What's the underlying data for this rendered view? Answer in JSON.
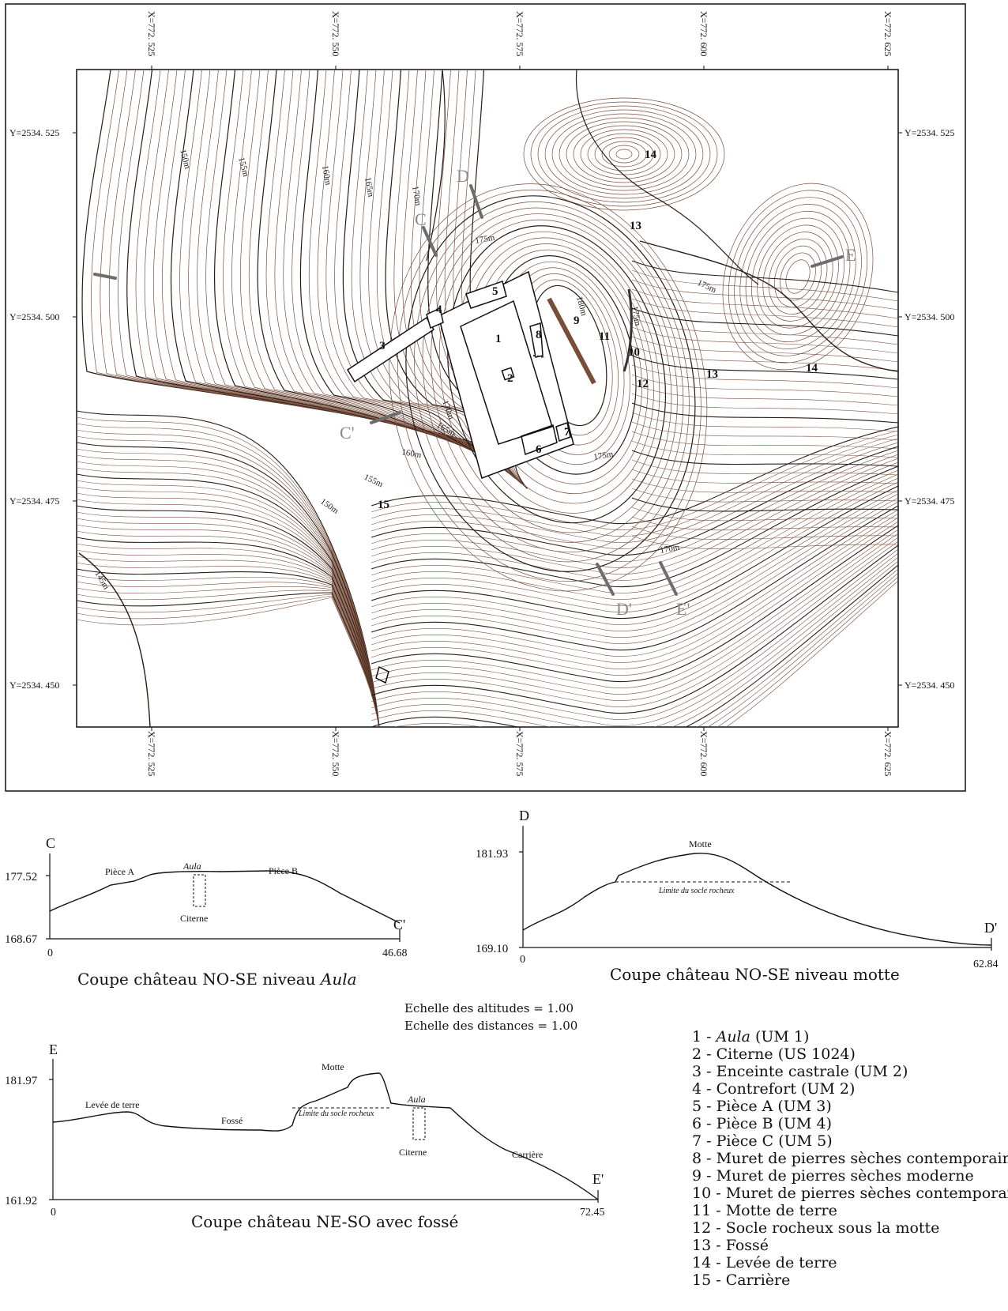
{
  "map": {
    "x_labels": [
      "X=772. 525",
      "X=772. 550",
      "X=772. 575",
      "X=772. 600",
      "X=772. 625"
    ],
    "y_labels": [
      "Y=2534. 525",
      "Y=2534. 500",
      "Y=2534. 475",
      "Y=2534. 450"
    ],
    "contour_labels": [
      "150m",
      "155m",
      "160m",
      "165m",
      "170m",
      "175m",
      "180m",
      "175m",
      "175m",
      "170m",
      "165m",
      "160m",
      "155m",
      "150m",
      "145m",
      "170m",
      "175m"
    ],
    "section_markers": [
      "C",
      "D",
      "E",
      "C'",
      "D'",
      "E'"
    ],
    "feature_numbers": [
      "1",
      "2",
      "3",
      "4",
      "5",
      "6",
      "7",
      "8",
      "9",
      "10",
      "11",
      "12",
      "13",
      "13",
      "14",
      "14",
      "15"
    ],
    "colors": {
      "contour": "#7a4d3a",
      "contour_major": "#2a1d18",
      "section_line": "#6d6d6d",
      "marker_text": "#8a8a8a"
    }
  },
  "profiles": {
    "c": {
      "start": "C",
      "end": "C'",
      "y_max": "177.52",
      "y_min": "168.67",
      "x_start": "0",
      "x_end": "46.68",
      "labels": {
        "room_a": "Pièce A",
        "aula": "Aula",
        "room_b": "Pièce B",
        "cistern": "Citerne"
      },
      "caption_prefix": "Coupe château NO-SE niveau ",
      "caption_em": "Aula"
    },
    "d": {
      "start": "D",
      "end": "D'",
      "y_max": "181.93",
      "y_min": "169.10",
      "x_start": "0",
      "x_end": "62.84",
      "labels": {
        "motte": "Motte",
        "bedrock": "Limite du socle rocheux"
      },
      "caption": "Coupe château NO-SE niveau motte"
    },
    "e": {
      "start": "E",
      "end": "E'",
      "y_max": "181.97",
      "y_min": "161.92",
      "x_start": "0",
      "x_end": "72.45",
      "labels": {
        "levee": "Levée de terre",
        "ditch": "Fossé",
        "motte": "Motte",
        "bedrock": "Limite du socle rocheux",
        "aula": "Aula",
        "cistern": "Citerne",
        "quarry": "Carrière"
      },
      "caption": "Coupe château NE-SO avec fossé"
    }
  },
  "scale_note": {
    "altitudes": "Echelle des altitudes = 1.00",
    "distances": "Echelle des distances = 1.00"
  },
  "legend": [
    {
      "num": "1 - ",
      "em": "Aula",
      "rest": " (UM 1)"
    },
    {
      "num": "2 - ",
      "em": "",
      "rest": "Citerne (US 1024)"
    },
    {
      "num": "3 - ",
      "em": "",
      "rest": "Enceinte castrale (UM 2)"
    },
    {
      "num": "4 - ",
      "em": "",
      "rest": "Contrefort (UM 2)"
    },
    {
      "num": "5 - ",
      "em": "",
      "rest": "Pièce A (UM 3)"
    },
    {
      "num": "6 - ",
      "em": "",
      "rest": "Pièce B (UM 4)"
    },
    {
      "num": "7 - ",
      "em": "",
      "rest": "Pièce C (UM 5)"
    },
    {
      "num": "8 - ",
      "em": "",
      "rest": "Muret de pierres sèches contemporain"
    },
    {
      "num": "9 - ",
      "em": "",
      "rest": "Muret de pierres sèches moderne"
    },
    {
      "num": "10 - ",
      "em": "",
      "rest": "Muret de pierres sèches contemporain"
    },
    {
      "num": "11 - ",
      "em": "",
      "rest": "Motte de terre"
    },
    {
      "num": "12 - ",
      "em": "",
      "rest": "Socle rocheux sous la motte"
    },
    {
      "num": "13 - ",
      "em": "",
      "rest": "Fossé"
    },
    {
      "num": "14 - ",
      "em": "",
      "rest": "Levée de terre"
    },
    {
      "num": "15 - ",
      "em": "",
      "rest": "Carrière"
    }
  ]
}
